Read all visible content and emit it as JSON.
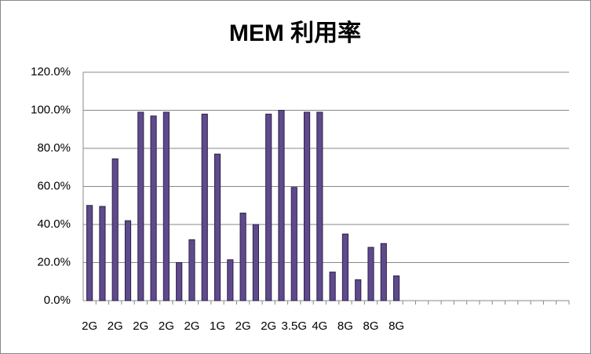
{
  "chart_data": {
    "type": "bar",
    "title": "MEM 利用率",
    "categories": [
      "2G",
      null,
      "2G",
      null,
      "2G",
      null,
      "2G",
      null,
      "2G",
      null,
      "1G",
      null,
      "2G",
      null,
      "2G",
      null,
      "3.5G",
      null,
      "4G",
      null,
      "8G",
      null,
      "8G",
      null,
      "8G",
      null,
      null,
      null,
      null,
      null,
      null,
      null,
      null,
      null,
      null,
      null,
      null,
      null
    ],
    "values": [
      50,
      49.5,
      74.5,
      42,
      99,
      97,
      99,
      20,
      32,
      98,
      77,
      21.5,
      46,
      40,
      98,
      100,
      59.5,
      99,
      99,
      15,
      35,
      11,
      28,
      30,
      13,
      null,
      null,
      null,
      null,
      null,
      null,
      null,
      null,
      null,
      null,
      null,
      null,
      null
    ],
    "color": "#5e4a8c",
    "ylim": [
      0,
      120
    ],
    "yticks": [
      {
        "value": 0,
        "label": "0.0%"
      },
      {
        "value": 20,
        "label": "20.0%"
      },
      {
        "value": 40,
        "label": "40.0%"
      },
      {
        "value": 60,
        "label": "60.0%"
      },
      {
        "value": 80,
        "label": "80.0%"
      },
      {
        "value": 100,
        "label": "100.0%"
      },
      {
        "value": 120,
        "label": "120.0%"
      }
    ],
    "grid": true
  }
}
